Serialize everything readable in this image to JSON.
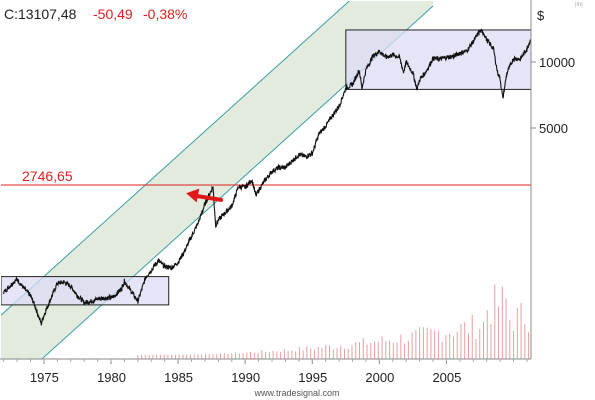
{
  "header": {
    "close_label": "C:13107,48",
    "change": "-50,49",
    "change_pct": "-0,38%",
    "up_color": "#222222",
    "down_color": "#e02020"
  },
  "watermark": "www.tradesignal.com",
  "chart_data": {
    "type": "line",
    "title": "",
    "currency_label": "$",
    "scale": "log",
    "y_ticks": [
      {
        "value": 5000,
        "label": "5000"
      },
      {
        "value": 10000,
        "label": "10000"
      }
    ],
    "x_ticks": [
      "1975",
      "1980",
      "1985",
      "1990",
      "1995",
      "2000",
      "2005"
    ],
    "xlim": [
      1971.8,
      2011.3
    ],
    "ylim_note": "log scale",
    "grid": false,
    "horizontal_line": {
      "value": 2746.65,
      "label": "2746,65",
      "color": "#e02020"
    },
    "channel": {
      "type": "parallel trend channel",
      "fill": "#dde8d8",
      "stroke": "#3aa0a8"
    },
    "boxes": [
      {
        "name": "range-1972-1984",
        "x": [
          1971.8,
          1984.3
        ],
        "y": [
          780,
          1050
        ],
        "fill": "#dcdcf4",
        "stroke": "#222222"
      },
      {
        "name": "range-1997-2011",
        "x": [
          1997.5,
          2011.3
        ],
        "y": [
          7500,
          14000
        ],
        "fill": "#dcdcf4",
        "stroke": "#222222"
      }
    ],
    "annotation_arrow": {
      "from": [
        1988.2,
        2350
      ],
      "to": [
        1985.6,
        2520
      ],
      "color": "#e01818"
    },
    "series": [
      {
        "type": "price",
        "color": "#111111",
        "x": [
          1972.0,
          1972.8,
          1973.0,
          1973.5,
          1974.0,
          1974.3,
          1974.8,
          1975.0,
          1975.5,
          1976.0,
          1976.5,
          1977.0,
          1977.5,
          1978.0,
          1978.5,
          1979.0,
          1979.5,
          1980.0,
          1980.3,
          1980.8,
          1981.0,
          1981.5,
          1982.0,
          1982.6,
          1983.0,
          1983.5,
          1984.0,
          1984.5,
          1985.0,
          1985.5,
          1986.0,
          1986.5,
          1987.0,
          1987.6,
          1987.8,
          1988.0,
          1988.5,
          1989.0,
          1989.5,
          1990.0,
          1990.5,
          1990.8,
          1991.0,
          1991.5,
          1992.0,
          1992.5,
          1993.0,
          1993.5,
          1994.0,
          1994.5,
          1995.0,
          1995.5,
          1996.0,
          1996.5,
          1997.0,
          1997.5,
          1998.0,
          1998.5,
          1998.7,
          1999.0,
          1999.5,
          2000.0,
          2000.5,
          2001.0,
          2001.5,
          2001.8,
          2002.0,
          2002.5,
          2002.8,
          2003.0,
          2003.5,
          2004.0,
          2004.5,
          2005.0,
          2005.5,
          2006.0,
          2006.5,
          2007.0,
          2007.5,
          2007.8,
          2008.0,
          2008.5,
          2008.8,
          2009.0,
          2009.2,
          2009.5,
          2010.0,
          2010.5,
          2011.0,
          2011.3
        ],
        "y": [
          890,
          1000,
          1020,
          930,
          860,
          780,
          640,
          700,
          830,
          980,
          990,
          950,
          860,
          800,
          810,
          830,
          840,
          840,
          860,
          930,
          1000,
          900,
          810,
          1050,
          1120,
          1240,
          1170,
          1150,
          1220,
          1380,
          1600,
          1850,
          2250,
          2700,
          1800,
          1900,
          2050,
          2200,
          2700,
          2680,
          2900,
          2450,
          2600,
          2900,
          3170,
          3300,
          3300,
          3540,
          3780,
          3700,
          3830,
          4700,
          5100,
          5700,
          6300,
          7600,
          7900,
          9200,
          7600,
          9200,
          10600,
          11200,
          10500,
          10800,
          10500,
          9000,
          10000,
          8900,
          7500,
          8300,
          9100,
          10400,
          10300,
          10500,
          10600,
          11000,
          11200,
          12400,
          13900,
          13500,
          12600,
          11500,
          9000,
          8400,
          6800,
          8900,
          10400,
          10300,
          11500,
          12800
        ]
      }
    ],
    "volume": {
      "type": "bar",
      "color": "#e6a0a0",
      "note": "volume bars, no axis"
    }
  }
}
